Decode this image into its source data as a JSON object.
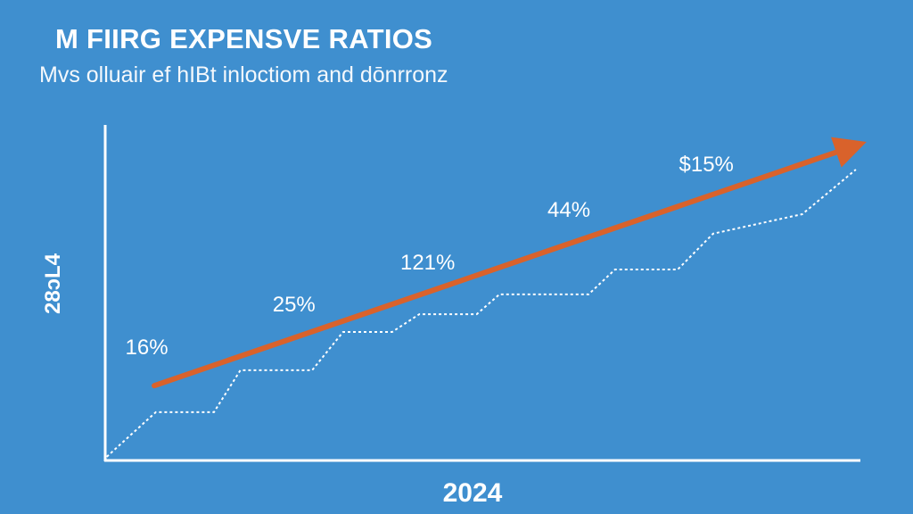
{
  "chart_data": {
    "type": "line",
    "title": "M FIIRG EXPENSVE RATIOS",
    "subtitle": "Mvs olluair ef hIBt inloctiom and dōnrronz",
    "xlabel": "2024",
    "ylabel": "28ↄL4",
    "xlim": [
      0,
      100
    ],
    "ylim": [
      0,
      100
    ],
    "grid": false,
    "colors": {
      "background": "#3f8fcf",
      "trend": "#d9622b",
      "steps": "#ffffff",
      "axes": "#ffffff"
    },
    "series": [
      {
        "style": "solid-arrow",
        "x": [
          6.5,
          98.8
        ],
        "y": [
          22.3,
          93.4
        ]
      },
      {
        "style": "dotted",
        "x": [
          0.2,
          6.7,
          14.4,
          17.9,
          27.4,
          31.5,
          38.0,
          41.6,
          49.2,
          52.2,
          64.0,
          67.5,
          75.8,
          80.5,
          92.3,
          99.4
        ],
        "y": [
          1.1,
          14.4,
          14.4,
          26.9,
          26.9,
          38.3,
          38.3,
          43.6,
          43.6,
          49.5,
          49.5,
          56.9,
          56.9,
          67.6,
          73.4,
          86.7
        ]
      }
    ],
    "annotations": [
      {
        "text": "16%",
        "x": 5.5,
        "y": 34
      },
      {
        "text": "25%",
        "x": 25,
        "y": 46.8
      },
      {
        "text": "121%",
        "x": 42.7,
        "y": 59.3
      },
      {
        "text": "44%",
        "x": 61.4,
        "y": 75
      },
      {
        "text": "$15%",
        "x": 79.6,
        "y": 88.6
      }
    ]
  }
}
